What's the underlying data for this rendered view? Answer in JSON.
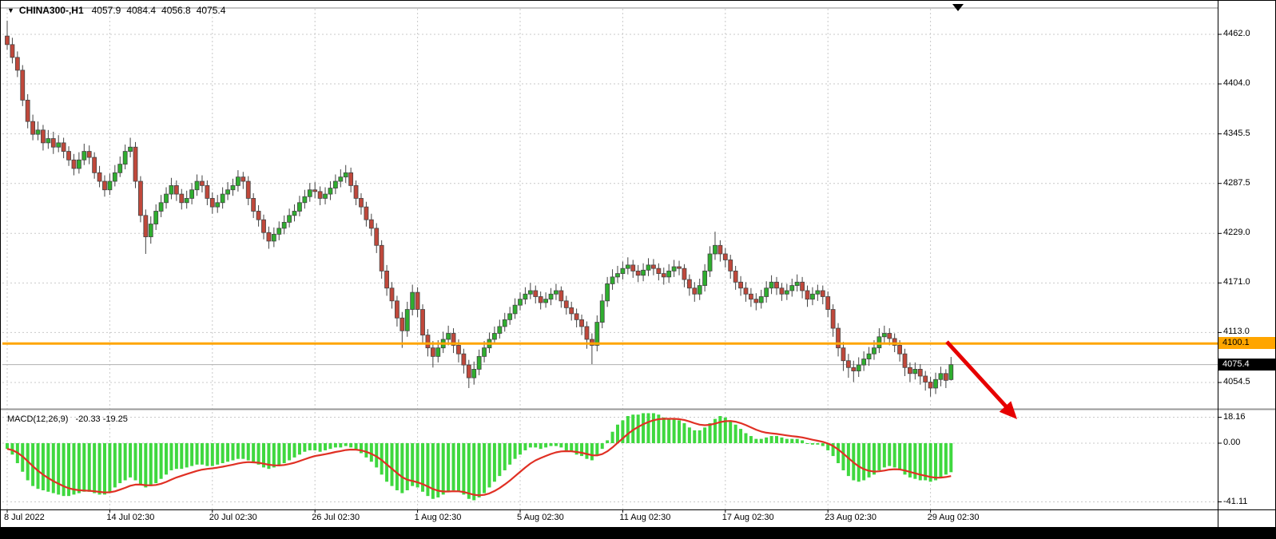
{
  "header": {
    "symbol": "CHINA300-,H1",
    "open": "4057.9",
    "high": "4084.4",
    "low": "4056.8",
    "close": "4075.4"
  },
  "icons": {
    "dropdown": "▼"
  },
  "price_markers": {
    "horizontal_line_label": "4100.1",
    "bid_label": "4075.4"
  },
  "colors": {
    "up": "#2fae2f",
    "down": "#c0483b",
    "outline": "#444444",
    "grid": "#c9c9c9",
    "macd_bar": "#3fd83f",
    "signal": "#e03024",
    "arrow": "#e60000",
    "orange": "#ffa500",
    "bid_line": "#b0b0b0",
    "separator": "#999999"
  },
  "chart_data": {
    "type": "candlestick",
    "title": "CHINA300-,H1",
    "timeframe": "H1",
    "price_range": [
      4024,
      4492
    ],
    "horizontal_line": 4100.1,
    "last_price": 4075.4,
    "price_ticks": [
      "4462.0",
      "4404.0",
      "4345.5",
      "4287.5",
      "4229.0",
      "4171.0",
      "4113.0",
      "4054.5"
    ],
    "time_ticks": [
      "8 Jul 2022",
      "14 Jul 02:30",
      "20 Jul 02:30",
      "26 Jul 02:30",
      "1 Aug 02:30",
      "5 Aug 02:30",
      "11 Aug 02:30",
      "17 Aug 02:30",
      "23 Aug 02:30",
      "29 Aug 02:30"
    ],
    "candles": [
      [
        4460,
        4478,
        4444,
        4450
      ],
      [
        4450,
        4458,
        4428,
        4435
      ],
      [
        4435,
        4442,
        4412,
        4420
      ],
      [
        4420,
        4426,
        4378,
        4385
      ],
      [
        4385,
        4392,
        4352,
        4360
      ],
      [
        4360,
        4368,
        4338,
        4345
      ],
      [
        4345,
        4360,
        4338,
        4350
      ],
      [
        4350,
        4356,
        4326,
        4335
      ],
      [
        4335,
        4350,
        4328,
        4340
      ],
      [
        4340,
        4348,
        4322,
        4330
      ],
      [
        4330,
        4344,
        4324,
        4335
      ],
      [
        4335,
        4341,
        4317,
        4325
      ],
      [
        4325,
        4331,
        4308,
        4315
      ],
      [
        4315,
        4322,
        4297,
        4305
      ],
      [
        4305,
        4324,
        4299,
        4315
      ],
      [
        4315,
        4334,
        4309,
        4325
      ],
      [
        4325,
        4332,
        4310,
        4318
      ],
      [
        4318,
        4324,
        4293,
        4300
      ],
      [
        4300,
        4308,
        4283,
        4290
      ],
      [
        4290,
        4297,
        4272,
        4280
      ],
      [
        4280,
        4299,
        4274,
        4290
      ],
      [
        4290,
        4309,
        4284,
        4300
      ],
      [
        4300,
        4319,
        4295,
        4310
      ],
      [
        4310,
        4333,
        4304,
        4325
      ],
      [
        4325,
        4341,
        4318,
        4330
      ],
      [
        4330,
        4336,
        4282,
        4290
      ],
      [
        4290,
        4296,
        4242,
        4250
      ],
      [
        4250,
        4257,
        4205,
        4225
      ],
      [
        4225,
        4249,
        4217,
        4240
      ],
      [
        4240,
        4263,
        4233,
        4255
      ],
      [
        4255,
        4274,
        4248,
        4265
      ],
      [
        4265,
        4283,
        4258,
        4275
      ],
      [
        4275,
        4294,
        4269,
        4285
      ],
      [
        4285,
        4291,
        4267,
        4275
      ],
      [
        4275,
        4281,
        4257,
        4265
      ],
      [
        4265,
        4279,
        4258,
        4270
      ],
      [
        4270,
        4288,
        4263,
        4280
      ],
      [
        4280,
        4298,
        4273,
        4290
      ],
      [
        4290,
        4297,
        4277,
        4285
      ],
      [
        4285,
        4291,
        4262,
        4270
      ],
      [
        4270,
        4277,
        4252,
        4260
      ],
      [
        4260,
        4274,
        4253,
        4265
      ],
      [
        4265,
        4283,
        4258,
        4275
      ],
      [
        4275,
        4289,
        4268,
        4280
      ],
      [
        4280,
        4293,
        4273,
        4285
      ],
      [
        4285,
        4303,
        4278,
        4295
      ],
      [
        4295,
        4301,
        4281,
        4290
      ],
      [
        4290,
        4296,
        4262,
        4270
      ],
      [
        4270,
        4276,
        4247,
        4255
      ],
      [
        4255,
        4262,
        4237,
        4245
      ],
      [
        4245,
        4251,
        4222,
        4230
      ],
      [
        4230,
        4237,
        4211,
        4220
      ],
      [
        4220,
        4236,
        4213,
        4228
      ],
      [
        4228,
        4243,
        4221,
        4235
      ],
      [
        4235,
        4250,
        4228,
        4242
      ],
      [
        4242,
        4258,
        4236,
        4250
      ],
      [
        4250,
        4263,
        4243,
        4255
      ],
      [
        4255,
        4273,
        4249,
        4265
      ],
      [
        4265,
        4280,
        4258,
        4272
      ],
      [
        4272,
        4288,
        4266,
        4280
      ],
      [
        4280,
        4289,
        4270,
        4278
      ],
      [
        4278,
        4284,
        4262,
        4270
      ],
      [
        4270,
        4283,
        4263,
        4275
      ],
      [
        4275,
        4290,
        4268,
        4282
      ],
      [
        4282,
        4298,
        4275,
        4290
      ],
      [
        4290,
        4304,
        4283,
        4295
      ],
      [
        4295,
        4309,
        4288,
        4300
      ],
      [
        4300,
        4306,
        4277,
        4285
      ],
      [
        4285,
        4291,
        4262,
        4270
      ],
      [
        4270,
        4276,
        4251,
        4260
      ],
      [
        4260,
        4266,
        4237,
        4245
      ],
      [
        4245,
        4252,
        4226,
        4235
      ],
      [
        4235,
        4241,
        4206,
        4215
      ],
      [
        4215,
        4221,
        4176,
        4185
      ],
      [
        4185,
        4192,
        4156,
        4165
      ],
      [
        4165,
        4172,
        4141,
        4150
      ],
      [
        4150,
        4156,
        4120,
        4130
      ],
      [
        4130,
        4137,
        4095,
        4115
      ],
      [
        4115,
        4149,
        4108,
        4140
      ],
      [
        4140,
        4169,
        4133,
        4160
      ],
      [
        4160,
        4166,
        4131,
        4140
      ],
      [
        4140,
        4146,
        4100,
        4110
      ],
      [
        4110,
        4117,
        4085,
        4095
      ],
      [
        4095,
        4103,
        4072,
        4085
      ],
      [
        4085,
        4104,
        4078,
        4095
      ],
      [
        4095,
        4114,
        4089,
        4105
      ],
      [
        4105,
        4121,
        4098,
        4112
      ],
      [
        4112,
        4118,
        4089,
        4098
      ],
      [
        4098,
        4105,
        4078,
        4088
      ],
      [
        4088,
        4094,
        4065,
        4075
      ],
      [
        4075,
        4081,
        4048,
        4060
      ],
      [
        4060,
        4079,
        4052,
        4070
      ],
      [
        4070,
        4093,
        4063,
        4085
      ],
      [
        4085,
        4103,
        4078,
        4095
      ],
      [
        4095,
        4113,
        4089,
        4105
      ],
      [
        4105,
        4120,
        4099,
        4112
      ],
      [
        4112,
        4128,
        4106,
        4120
      ],
      [
        4120,
        4136,
        4114,
        4128
      ],
      [
        4128,
        4143,
        4122,
        4135
      ],
      [
        4135,
        4153,
        4129,
        4145
      ],
      [
        4145,
        4160,
        4139,
        4152
      ],
      [
        4152,
        4166,
        4146,
        4158
      ],
      [
        4158,
        4171,
        4152,
        4162
      ],
      [
        4162,
        4168,
        4147,
        4155
      ],
      [
        4155,
        4161,
        4140,
        4148
      ],
      [
        4148,
        4160,
        4142,
        4152
      ],
      [
        4152,
        4165,
        4145,
        4158
      ],
      [
        4158,
        4170,
        4151,
        4162
      ],
      [
        4162,
        4167,
        4142,
        4150
      ],
      [
        4150,
        4156,
        4134,
        4142
      ],
      [
        4142,
        4149,
        4127,
        4135
      ],
      [
        4135,
        4141,
        4119,
        4128
      ],
      [
        4128,
        4134,
        4110,
        4120
      ],
      [
        4120,
        4126,
        4094,
        4105
      ],
      [
        4105,
        4112,
        4076,
        4098
      ],
      [
        4098,
        4133,
        4091,
        4125
      ],
      [
        4125,
        4158,
        4118,
        4150
      ],
      [
        4150,
        4178,
        4143,
        4170
      ],
      [
        4170,
        4187,
        4163,
        4178
      ],
      [
        4178,
        4191,
        4171,
        4182
      ],
      [
        4182,
        4196,
        4175,
        4188
      ],
      [
        4188,
        4201,
        4181,
        4192
      ],
      [
        4192,
        4198,
        4177,
        4185
      ],
      [
        4185,
        4192,
        4172,
        4180
      ],
      [
        4180,
        4194,
        4173,
        4186
      ],
      [
        4186,
        4200,
        4179,
        4192
      ],
      [
        4192,
        4199,
        4180,
        4188
      ],
      [
        4188,
        4194,
        4174,
        4182
      ],
      [
        4182,
        4189,
        4169,
        4178
      ],
      [
        4178,
        4193,
        4171,
        4185
      ],
      [
        4185,
        4198,
        4178,
        4190
      ],
      [
        4190,
        4197,
        4180,
        4188
      ],
      [
        4188,
        4193,
        4166,
        4175
      ],
      [
        4175,
        4181,
        4156,
        4165
      ],
      [
        4165,
        4172,
        4149,
        4158
      ],
      [
        4158,
        4176,
        4151,
        4168
      ],
      [
        4168,
        4193,
        4161,
        4185
      ],
      [
        4185,
        4214,
        4178,
        4205
      ],
      [
        4205,
        4231,
        4198,
        4215
      ],
      [
        4215,
        4221,
        4196,
        4205
      ],
      [
        4205,
        4212,
        4189,
        4198
      ],
      [
        4198,
        4204,
        4176,
        4185
      ],
      [
        4185,
        4191,
        4163,
        4172
      ],
      [
        4172,
        4179,
        4156,
        4165
      ],
      [
        4165,
        4172,
        4149,
        4158
      ],
      [
        4158,
        4165,
        4143,
        4152
      ],
      [
        4152,
        4159,
        4139,
        4148
      ],
      [
        4148,
        4163,
        4141,
        4155
      ],
      [
        4155,
        4173,
        4148,
        4165
      ],
      [
        4165,
        4180,
        4158,
        4172
      ],
      [
        4172,
        4178,
        4157,
        4165
      ],
      [
        4165,
        4171,
        4150,
        4158
      ],
      [
        4158,
        4170,
        4151,
        4162
      ],
      [
        4162,
        4176,
        4155,
        4168
      ],
      [
        4168,
        4181,
        4161,
        4172
      ],
      [
        4172,
        4178,
        4153,
        4162
      ],
      [
        4162,
        4168,
        4143,
        4152
      ],
      [
        4152,
        4166,
        4145,
        4158
      ],
      [
        4158,
        4169,
        4150,
        4162
      ],
      [
        4162,
        4168,
        4146,
        4155
      ],
      [
        4155,
        4161,
        4131,
        4140
      ],
      [
        4140,
        4146,
        4108,
        4118
      ],
      [
        4118,
        4124,
        4085,
        4095
      ],
      [
        4095,
        4102,
        4068,
        4080
      ],
      [
        4080,
        4088,
        4060,
        4072
      ],
      [
        4072,
        4080,
        4055,
        4068
      ],
      [
        4068,
        4084,
        4061,
        4075
      ],
      [
        4075,
        4091,
        4068,
        4082
      ],
      [
        4082,
        4096,
        4074,
        4088
      ],
      [
        4088,
        4104,
        4081,
        4095
      ],
      [
        4095,
        4118,
        4089,
        4108
      ],
      [
        4108,
        4121,
        4101,
        4112
      ],
      [
        4112,
        4118,
        4098,
        4106
      ],
      [
        4106,
        4112,
        4090,
        4098
      ],
      [
        4098,
        4104,
        4079,
        4088
      ],
      [
        4088,
        4094,
        4062,
        4072
      ],
      [
        4072,
        4078,
        4055,
        4065
      ],
      [
        4065,
        4078,
        4058,
        4070
      ],
      [
        4070,
        4076,
        4052,
        4062
      ],
      [
        4062,
        4068,
        4045,
        4055
      ],
      [
        4055,
        4061,
        4038,
        4048
      ],
      [
        4048,
        4066,
        4041,
        4058
      ],
      [
        4058,
        4073,
        4050,
        4065
      ],
      [
        4065,
        4070,
        4048,
        4057
      ],
      [
        4057.9,
        4084.4,
        4056.8,
        4075.4
      ]
    ],
    "macd": {
      "type": "bar",
      "label": "MACD(12,26,9)",
      "macd_value": -20.33,
      "signal_value": -19.25,
      "values_text": "-20.33 -19.25",
      "axis_ticks": [
        "18.16",
        "0.00",
        "-41.11"
      ],
      "range": [
        -41.11,
        18.16
      ],
      "histogram": [
        -4,
        -8,
        -14,
        -20,
        -26,
        -30,
        -32,
        -33,
        -34,
        -35,
        -36,
        -37,
        -37,
        -36,
        -35,
        -34,
        -34,
        -35,
        -36,
        -36,
        -34,
        -31,
        -28,
        -26,
        -24,
        -26,
        -29,
        -31,
        -30,
        -28,
        -25,
        -22,
        -19,
        -18,
        -18,
        -17,
        -16,
        -15,
        -15,
        -16,
        -16,
        -15,
        -14,
        -13,
        -12,
        -11,
        -11,
        -12,
        -14,
        -15,
        -17,
        -18,
        -17,
        -16,
        -14,
        -12,
        -10,
        -8,
        -6,
        -5,
        -5,
        -6,
        -5,
        -4,
        -3,
        -3,
        -2,
        -3,
        -5,
        -7,
        -10,
        -13,
        -17,
        -22,
        -27,
        -30,
        -33,
        -35,
        -33,
        -30,
        -31,
        -34,
        -37,
        -39,
        -38,
        -36,
        -34,
        -33,
        -34,
        -36,
        -39,
        -40,
        -38,
        -35,
        -31,
        -27,
        -23,
        -19,
        -15,
        -11,
        -8,
        -5,
        -3,
        -3,
        -4,
        -3,
        -2,
        -2,
        -3,
        -5,
        -6,
        -8,
        -9,
        -11,
        -12,
        -9,
        -4,
        2,
        8,
        13,
        16,
        19,
        20,
        20,
        21,
        21,
        21,
        20,
        18,
        17,
        17,
        16,
        14,
        11,
        9,
        9,
        11,
        14,
        17,
        19,
        18,
        16,
        13,
        10,
        7,
        5,
        3,
        3,
        4,
        5,
        5,
        4,
        3,
        3,
        3,
        2,
        0,
        -1,
        -1,
        -2,
        -5,
        -9,
        -14,
        -19,
        -23,
        -26,
        -27,
        -26,
        -24,
        -22,
        -19,
        -17,
        -16,
        -17,
        -19,
        -22,
        -24,
        -25,
        -26,
        -26,
        -27,
        -26,
        -24,
        -22,
        -20.33
      ]
    }
  }
}
